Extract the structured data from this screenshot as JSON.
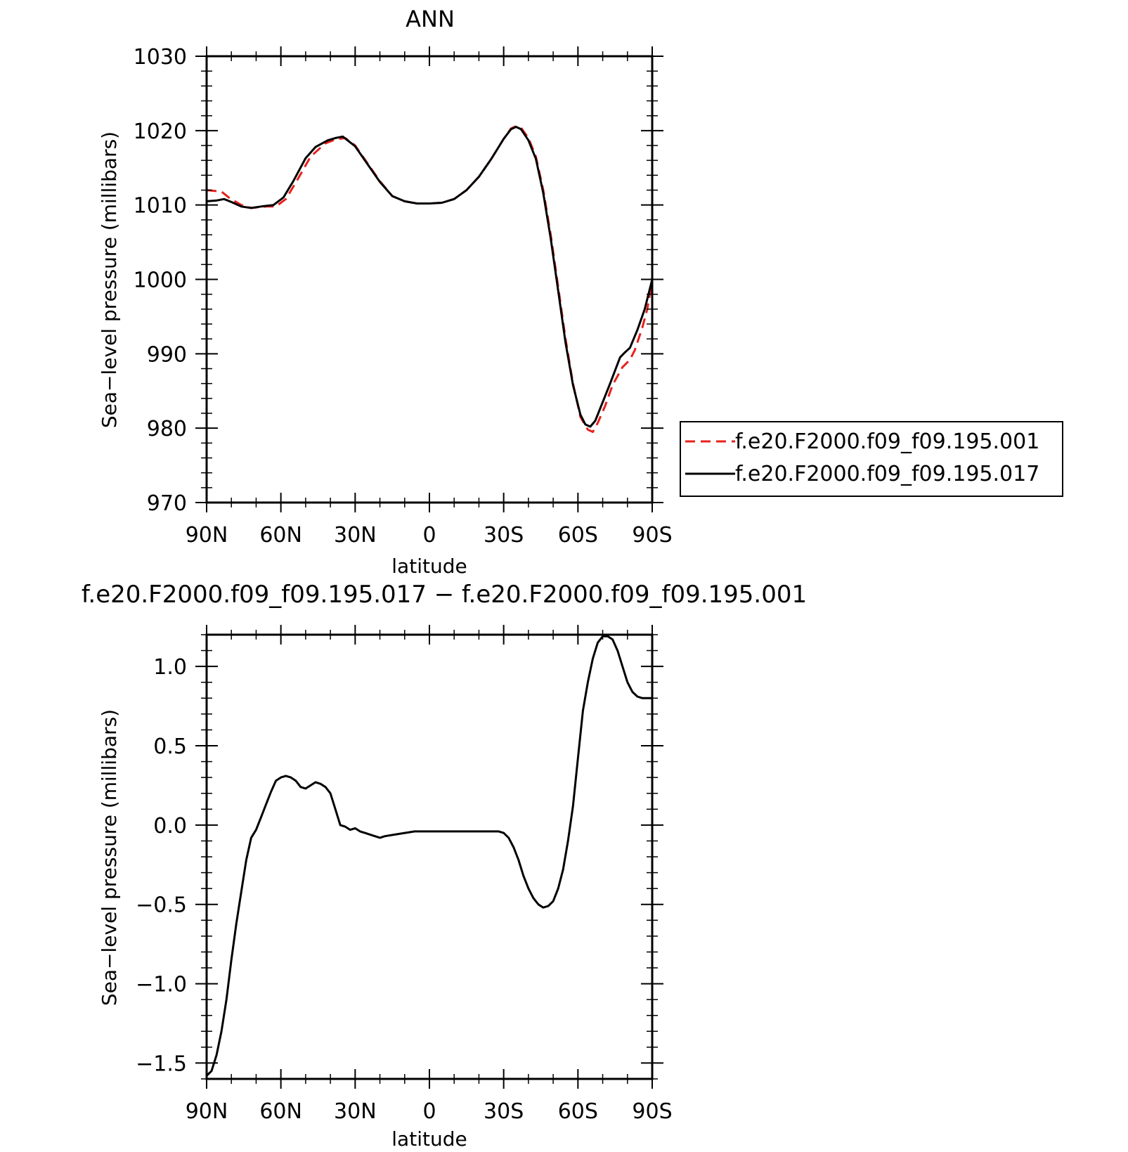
{
  "chart_data": [
    {
      "type": "line",
      "title": "ANN",
      "xlabel": "latitude",
      "ylabel": "Sea−level pressure (millibars)",
      "xlim": [
        90,
        -90
      ],
      "ylim": [
        970,
        1030
      ],
      "x_ticks": [
        90,
        60,
        30,
        0,
        -30,
        -60,
        -90
      ],
      "x_tick_labels": [
        "90N",
        "60N",
        "30N",
        "0",
        "30S",
        "60S",
        "90S"
      ],
      "y_ticks": [
        970,
        980,
        990,
        1000,
        1010,
        1020,
        1030
      ],
      "y_tick_labels": [
        "970",
        "980",
        "990",
        "1000",
        "1010",
        "1020",
        "1030"
      ],
      "legend_position": "right",
      "series": [
        {
          "name": "f.e20.F2000.f09_f09.195.001",
          "color": "#e8211d",
          "dash": "dashed",
          "points": [
            [
              90,
              1012.0
            ],
            [
              84,
              1011.8
            ],
            [
              81,
              1011.0
            ],
            [
              76,
              1010.0
            ],
            [
              72,
              1009.6
            ],
            [
              66,
              1009.8
            ],
            [
              62,
              1009.8
            ],
            [
              58,
              1010.8
            ],
            [
              54,
              1013.0
            ],
            [
              48,
              1016.5
            ],
            [
              42,
              1018.3
            ],
            [
              38,
              1018.8
            ],
            [
              34,
              1019.0
            ],
            [
              30,
              1018.0
            ],
            [
              25,
              1015.6
            ],
            [
              20,
              1013.2
            ],
            [
              15,
              1011.2
            ],
            [
              10,
              1010.5
            ],
            [
              5,
              1010.2
            ],
            [
              0,
              1010.2
            ],
            [
              -5,
              1010.3
            ],
            [
              -10,
              1010.8
            ],
            [
              -15,
              1012.0
            ],
            [
              -20,
              1013.8
            ],
            [
              -25,
              1016.2
            ],
            [
              -30,
              1018.9
            ],
            [
              -33,
              1020.3
            ],
            [
              -35,
              1020.6
            ],
            [
              -37,
              1020.4
            ],
            [
              -40,
              1019.0
            ],
            [
              -43,
              1016.5
            ],
            [
              -46,
              1012.0
            ],
            [
              -49,
              1006.0
            ],
            [
              -52,
              999.0
            ],
            [
              -55,
              992.0
            ],
            [
              -58,
              986.0
            ],
            [
              -61,
              981.5
            ],
            [
              -64,
              979.8
            ],
            [
              -66,
              979.5
            ],
            [
              -68,
              980.7
            ],
            [
              -71,
              983.0
            ],
            [
              -74,
              985.8
            ],
            [
              -78,
              988.2
            ],
            [
              -81,
              989.2
            ],
            [
              -83,
              990.5
            ],
            [
              -86,
              993.5
            ],
            [
              -88,
              996.0
            ],
            [
              -90,
              999.8
            ]
          ]
        },
        {
          "name": "f.e20.F2000.f09_f09.195.017",
          "color": "#000000",
          "dash": "solid",
          "points": [
            [
              90,
              1010.5
            ],
            [
              86,
              1010.6
            ],
            [
              83,
              1010.8
            ],
            [
              80,
              1010.4
            ],
            [
              76,
              1009.8
            ],
            [
              72,
              1009.6
            ],
            [
              68,
              1009.8
            ],
            [
              63,
              1010.0
            ],
            [
              59,
              1011.0
            ],
            [
              55,
              1013.2
            ],
            [
              50,
              1016.3
            ],
            [
              46,
              1017.8
            ],
            [
              41,
              1018.7
            ],
            [
              38,
              1019.0
            ],
            [
              35,
              1019.2
            ],
            [
              30,
              1017.9
            ],
            [
              25,
              1015.5
            ],
            [
              20,
              1013.1
            ],
            [
              15,
              1011.2
            ],
            [
              10,
              1010.5
            ],
            [
              5,
              1010.2
            ],
            [
              0,
              1010.2
            ],
            [
              -5,
              1010.3
            ],
            [
              -10,
              1010.8
            ],
            [
              -15,
              1012.0
            ],
            [
              -20,
              1013.8
            ],
            [
              -25,
              1016.2
            ],
            [
              -30,
              1018.9
            ],
            [
              -33,
              1020.2
            ],
            [
              -35,
              1020.5
            ],
            [
              -37,
              1020.2
            ],
            [
              -40,
              1018.7
            ],
            [
              -43,
              1016.2
            ],
            [
              -46,
              1011.6
            ],
            [
              -49,
              1005.5
            ],
            [
              -52,
              998.5
            ],
            [
              -55,
              991.5
            ],
            [
              -58,
              985.8
            ],
            [
              -61,
              981.8
            ],
            [
              -63,
              980.5
            ],
            [
              -65,
              980.2
            ],
            [
              -67,
              981.0
            ],
            [
              -70,
              983.5
            ],
            [
              -73,
              986.0
            ],
            [
              -77,
              989.5
            ],
            [
              -79,
              990.2
            ],
            [
              -81,
              990.8
            ],
            [
              -84,
              993.2
            ],
            [
              -87,
              996.0
            ],
            [
              -90,
              1000.0
            ]
          ]
        }
      ]
    },
    {
      "type": "line",
      "title": "f.e20.F2000.f09_f09.195.017 − f.e20.F2000.f09_f09.195.001",
      "xlabel": "latitude",
      "ylabel": "Sea−level pressure (millibars)",
      "xlim": [
        90,
        -90
      ],
      "ylim": [
        -1.6,
        1.2
      ],
      "x_ticks": [
        90,
        60,
        30,
        0,
        -30,
        -60,
        -90
      ],
      "x_tick_labels": [
        "90N",
        "60N",
        "30N",
        "0",
        "30S",
        "60S",
        "90S"
      ],
      "y_ticks": [
        -1.5,
        -1.0,
        -0.5,
        0.0,
        0.5,
        1.0
      ],
      "y_tick_labels": [
        "−1.5",
        "−1.0",
        "−0.5",
        "0.0",
        "0.5",
        "1.0"
      ],
      "series": [
        {
          "color": "#000000",
          "dash": "solid",
          "points": [
            [
              90,
              -1.58
            ],
            [
              88,
              -1.55
            ],
            [
              86,
              -1.45
            ],
            [
              84,
              -1.3
            ],
            [
              82,
              -1.1
            ],
            [
              80,
              -0.85
            ],
            [
              78,
              -0.62
            ],
            [
              76,
              -0.42
            ],
            [
              74,
              -0.22
            ],
            [
              72,
              -0.08
            ],
            [
              70,
              -0.03
            ],
            [
              68,
              0.05
            ],
            [
              66,
              0.13
            ],
            [
              64,
              0.21
            ],
            [
              62,
              0.28
            ],
            [
              60,
              0.3
            ],
            [
              58,
              0.31
            ],
            [
              56,
              0.3
            ],
            [
              54,
              0.28
            ],
            [
              52,
              0.24
            ],
            [
              50,
              0.23
            ],
            [
              48,
              0.25
            ],
            [
              46,
              0.27
            ],
            [
              44,
              0.26
            ],
            [
              42,
              0.24
            ],
            [
              40,
              0.2
            ],
            [
              38,
              0.1
            ],
            [
              36,
              0.0
            ],
            [
              34,
              -0.01
            ],
            [
              32,
              -0.03
            ],
            [
              30,
              -0.02
            ],
            [
              28,
              -0.04
            ],
            [
              26,
              -0.05
            ],
            [
              24,
              -0.06
            ],
            [
              22,
              -0.07
            ],
            [
              20,
              -0.08
            ],
            [
              18,
              -0.07
            ],
            [
              14,
              -0.06
            ],
            [
              10,
              -0.05
            ],
            [
              6,
              -0.04
            ],
            [
              2,
              -0.04
            ],
            [
              -2,
              -0.04
            ],
            [
              -6,
              -0.04
            ],
            [
              -10,
              -0.04
            ],
            [
              -14,
              -0.04
            ],
            [
              -18,
              -0.04
            ],
            [
              -22,
              -0.04
            ],
            [
              -26,
              -0.04
            ],
            [
              -28,
              -0.04
            ],
            [
              -30,
              -0.05
            ],
            [
              -32,
              -0.08
            ],
            [
              -34,
              -0.14
            ],
            [
              -36,
              -0.22
            ],
            [
              -38,
              -0.32
            ],
            [
              -40,
              -0.4
            ],
            [
              -42,
              -0.46
            ],
            [
              -44,
              -0.5
            ],
            [
              -46,
              -0.52
            ],
            [
              -48,
              -0.51
            ],
            [
              -50,
              -0.48
            ],
            [
              -52,
              -0.4
            ],
            [
              -54,
              -0.28
            ],
            [
              -56,
              -0.1
            ],
            [
              -58,
              0.12
            ],
            [
              -60,
              0.42
            ],
            [
              -62,
              0.72
            ],
            [
              -64,
              0.9
            ],
            [
              -66,
              1.05
            ],
            [
              -68,
              1.15
            ],
            [
              -70,
              1.19
            ],
            [
              -72,
              1.19
            ],
            [
              -74,
              1.17
            ],
            [
              -76,
              1.1
            ],
            [
              -78,
              1.0
            ],
            [
              -80,
              0.9
            ],
            [
              -82,
              0.84
            ],
            [
              -84,
              0.81
            ],
            [
              -86,
              0.8
            ],
            [
              -88,
              0.8
            ],
            [
              -90,
              0.8
            ]
          ]
        }
      ]
    }
  ]
}
